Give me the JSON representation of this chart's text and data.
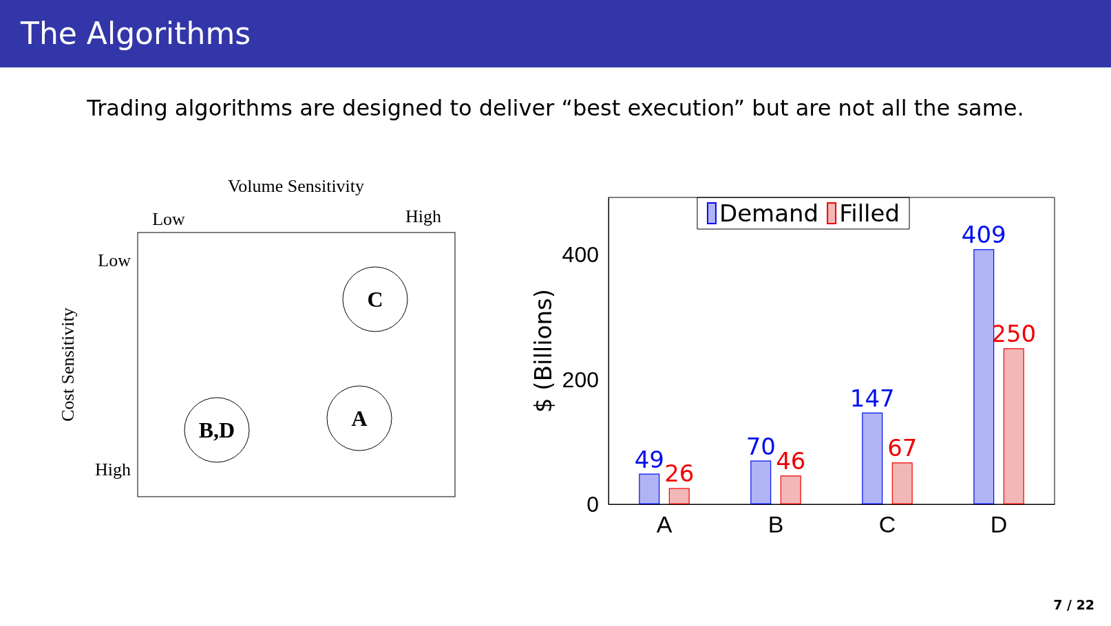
{
  "chart_data": [
    {
      "type": "other",
      "title": "The Algorithms",
      "subtitle": "Trading algorithms are designed to deliver “best execution” but are not all the same.",
      "xlabel": "Volume Sensitivity",
      "ylabel": "Cost Sensitivity",
      "annotations": [
        "C",
        "A",
        "B,D",
        "Low",
        "High",
        "Low",
        "High"
      ]
    },
    {
      "type": "bar",
      "ylabel": "$ (Billions)",
      "categories": [
        "A",
        "B",
        "C",
        "D"
      ],
      "series": [
        {
          "name": "Demand",
          "color": "#b0b4f5",
          "values": [
            49,
            70,
            147,
            409
          ]
        },
        {
          "name": "Filled",
          "color": "#f2b8b8",
          "values": [
            26,
            46,
            67,
            250
          ]
        }
      ],
      "ylim": [
        0,
        492
      ],
      "yticks": [
        0,
        200,
        400
      ],
      "data_labels": true,
      "grid": false,
      "legend": "top",
      "annotations": [
        "7 / 22"
      ]
    }
  ]
}
